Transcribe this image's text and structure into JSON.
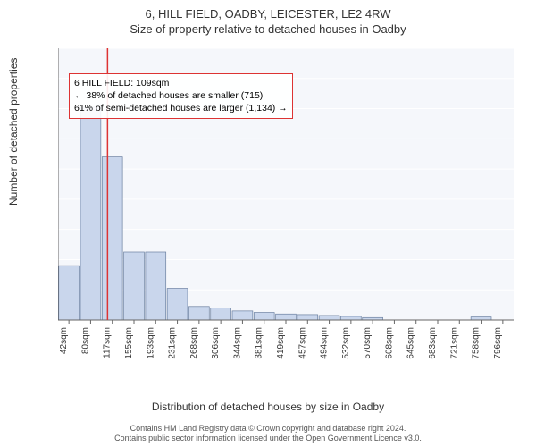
{
  "title_main": "6, HILL FIELD, OADBY, LEICESTER, LE2 4RW",
  "title_sub": "Size of property relative to detached houses in Oadby",
  "y_axis_label": "Number of detached properties",
  "x_axis_label": "Distribution of detached houses by size in Oadby",
  "footer_line1": "Contains HM Land Registry data © Crown copyright and database right 2024.",
  "footer_line2": "Contains public sector information licensed under the Open Government Licence v3.0.",
  "callout": {
    "line1": "6 HILL FIELD: 109sqm",
    "line2": "← 38% of detached houses are smaller (715)",
    "line3": "61% of semi-detached houses are larger (1,134) →",
    "border_color": "#d33"
  },
  "chart": {
    "type": "bar",
    "plot_bg": "#f5f7fb",
    "grid_color": "#ffffff",
    "axis_color": "#666666",
    "bar_fill": "#c9d6ec",
    "bar_stroke": "#6a7fa0",
    "marker_color": "#d33",
    "marker_x_index": 1.78,
    "y": {
      "min": 0,
      "max": 900,
      "step": 100,
      "tick_fontsize": 11
    },
    "x": {
      "labels": [
        "42sqm",
        "80sqm",
        "117sqm",
        "155sqm",
        "193sqm",
        "231sqm",
        "268sqm",
        "306sqm",
        "344sqm",
        "381sqm",
        "419sqm",
        "457sqm",
        "494sqm",
        "532sqm",
        "570sqm",
        "608sqm",
        "645sqm",
        "683sqm",
        "721sqm",
        "758sqm",
        "796sqm"
      ],
      "tick_fontsize": 10
    },
    "values": [
      180,
      705,
      540,
      225,
      225,
      105,
      45,
      40,
      30,
      25,
      20,
      18,
      15,
      12,
      8,
      0,
      0,
      0,
      0,
      10,
      0
    ]
  }
}
